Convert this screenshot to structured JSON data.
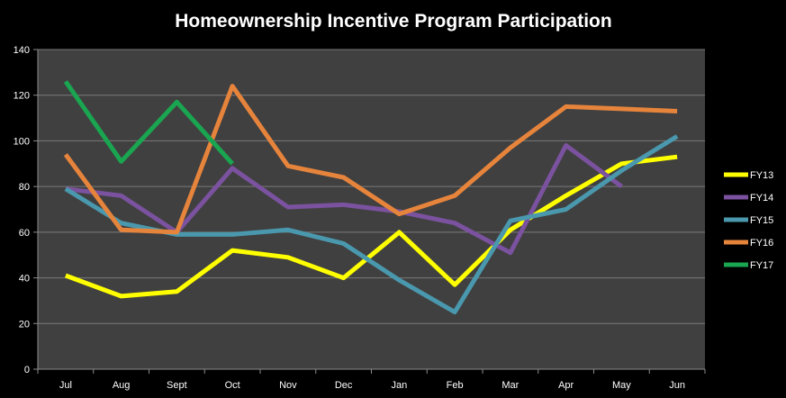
{
  "chart_data": {
    "type": "line",
    "title": "Homeownership Incentive Program Participation",
    "xlabel": "",
    "ylabel": "",
    "categories": [
      "Jul",
      "Aug",
      "Sept",
      "Oct",
      "Nov",
      "Dec",
      "Jan",
      "Feb",
      "Mar",
      "Apr",
      "May",
      "Jun"
    ],
    "ylim": [
      0,
      140
    ],
    "yticks": [
      "0",
      "20",
      "40",
      "60",
      "80",
      "100",
      "120",
      "140"
    ],
    "grid": true,
    "legend_position": "right",
    "plot_background": "#404040",
    "background": "#000000",
    "series": [
      {
        "name": "FY13",
        "color": "#ffff00",
        "values": [
          41,
          32,
          34,
          52,
          49,
          40,
          60,
          37,
          61,
          76,
          90,
          93
        ]
      },
      {
        "name": "FY14",
        "color": "#7b529f",
        "values": [
          79,
          76,
          60,
          88,
          71,
          72,
          69,
          64,
          51,
          98,
          80,
          null
        ]
      },
      {
        "name": "FY15",
        "color": "#4a98ad",
        "values": [
          79,
          64,
          59,
          59,
          61,
          55,
          39,
          25,
          65,
          70,
          87,
          102
        ]
      },
      {
        "name": "FY16",
        "color": "#e6843c",
        "values": [
          94,
          61,
          60,
          124,
          89,
          84,
          68,
          76,
          97,
          115,
          114,
          113
        ]
      },
      {
        "name": "FY17",
        "color": "#1aa550",
        "values": [
          126,
          91,
          117,
          90,
          null,
          null,
          null,
          null,
          null,
          null,
          null,
          null
        ]
      }
    ]
  }
}
